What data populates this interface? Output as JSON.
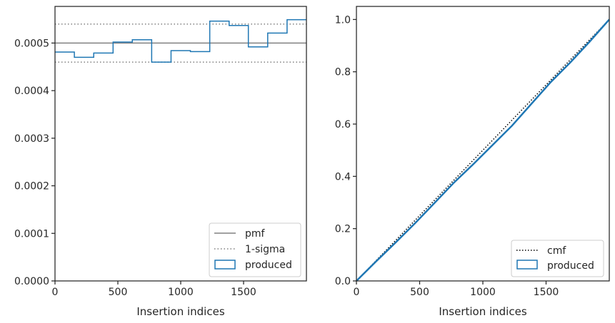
{
  "chart_data": [
    {
      "type": "step",
      "xlabel": "Insertion indices",
      "ylabel": "",
      "xlim": [
        0,
        2000
      ],
      "ylim": [
        0,
        0.000577
      ],
      "xticks": [
        0,
        500,
        1000,
        1500
      ],
      "xtick_labels": [
        "0",
        "500",
        "1000",
        "1500"
      ],
      "yticks": [
        0,
        0.0001,
        0.0002,
        0.0003,
        0.0004,
        0.0005
      ],
      "ytick_labels": [
        "0.0000",
        "0.0001",
        "0.0002",
        "0.0003",
        "0.0004",
        "0.0005"
      ],
      "pmf": 0.0005,
      "sigma_lines": [
        0.00046,
        0.00054
      ],
      "bin_edges": [
        0,
        154,
        308,
        462,
        615,
        769,
        923,
        1077,
        1231,
        1385,
        1538,
        1692,
        1846,
        2000
      ],
      "produced_values": [
        0.000481,
        0.00047,
        0.000479,
        0.000502,
        0.000507,
        0.00046,
        0.000484,
        0.000482,
        0.000546,
        0.000537,
        0.000492,
        0.000521,
        0.000549
      ],
      "legend_location": "lower right",
      "legend": [
        {
          "label": "pmf",
          "style": "solid-line",
          "color": "#808080"
        },
        {
          "label": "1-sigma",
          "style": "dotted-line",
          "color": "#808080"
        },
        {
          "label": "produced",
          "style": "box",
          "color": "#1f77b4"
        }
      ]
    },
    {
      "type": "line",
      "xlabel": "Insertion indices",
      "ylabel": "",
      "xlim": [
        0,
        2000
      ],
      "ylim": [
        0,
        1.05
      ],
      "xticks": [
        0,
        500,
        1000,
        1500
      ],
      "xtick_labels": [
        "0",
        "500",
        "1000",
        "1500"
      ],
      "yticks": [
        0,
        0.2,
        0.4,
        0.6,
        0.8,
        1.0
      ],
      "ytick_labels": [
        "0.0",
        "0.2",
        "0.4",
        "0.6",
        "0.8",
        "1.0"
      ],
      "cmf": {
        "x": [
          0,
          2000
        ],
        "y": [
          0,
          1.0
        ]
      },
      "produced": {
        "x": [
          0,
          154,
          308,
          462,
          615,
          769,
          923,
          1077,
          1231,
          1385,
          1538,
          1692,
          1846,
          2000
        ],
        "y": [
          0,
          0.074,
          0.146,
          0.22,
          0.297,
          0.375,
          0.446,
          0.52,
          0.594,
          0.678,
          0.761,
          0.836,
          0.916,
          1.0
        ]
      },
      "legend_location": "lower right",
      "legend": [
        {
          "label": "cmf",
          "style": "dotted-line",
          "color": "#000000"
        },
        {
          "label": "produced",
          "style": "box",
          "color": "#1f77b4"
        }
      ]
    }
  ]
}
